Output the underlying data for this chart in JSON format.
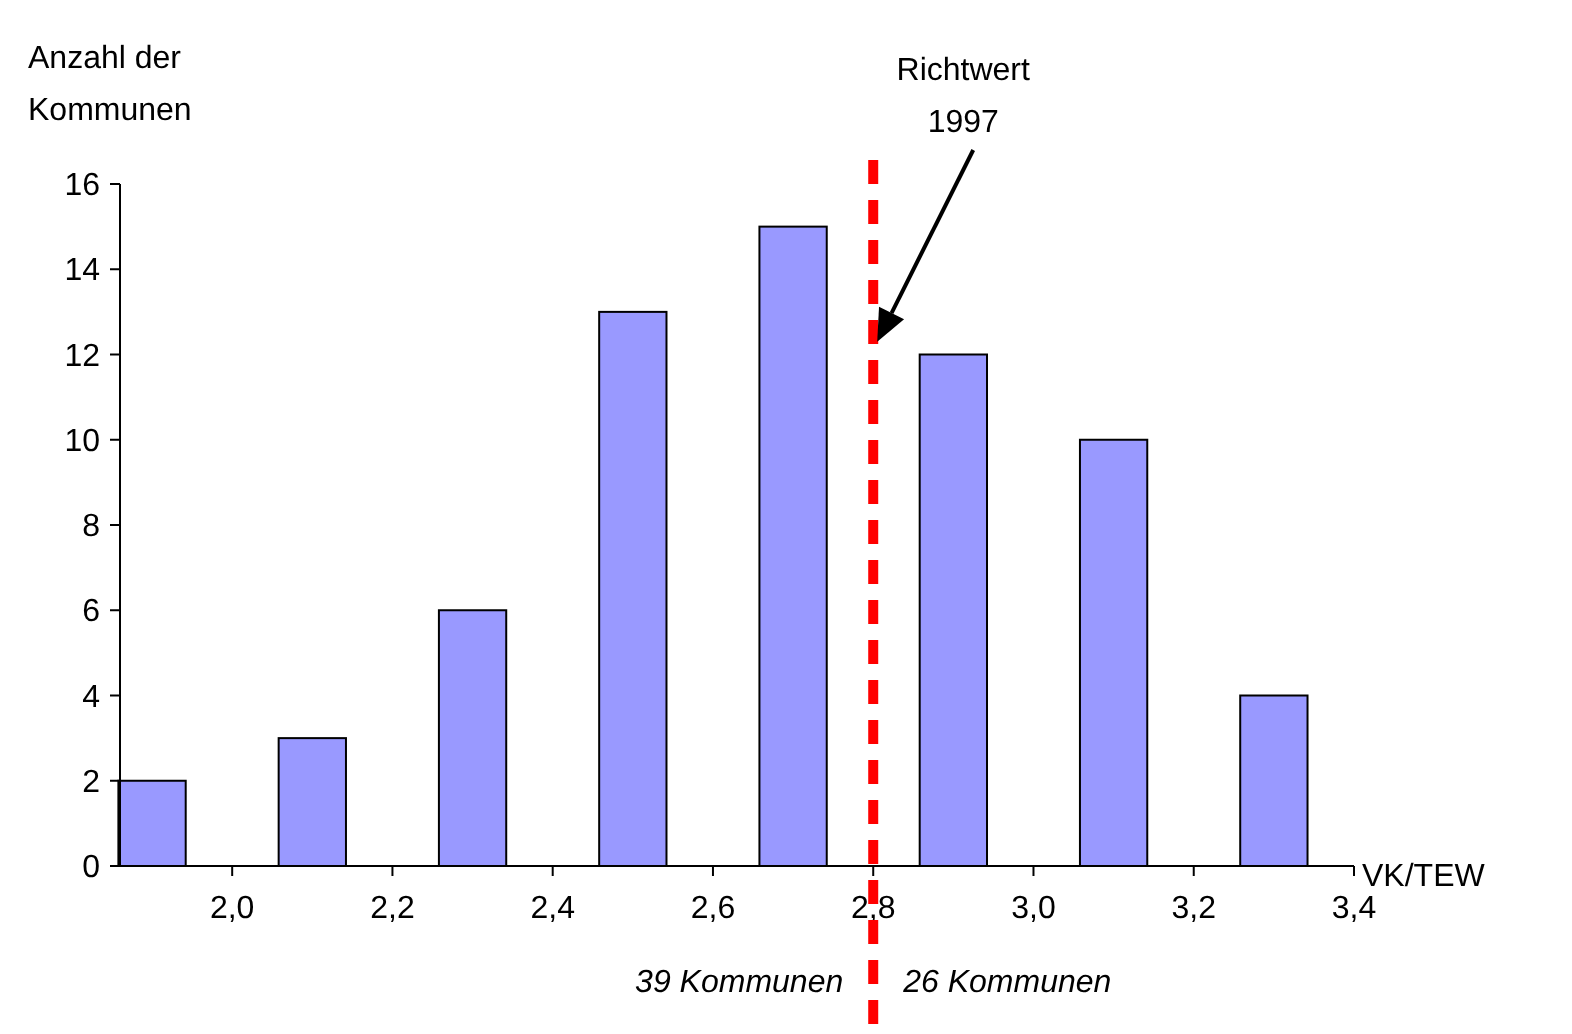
{
  "chart_data": {
    "type": "bar",
    "xlabel": "VK/TEW",
    "ylabel": "Anzahl der Kommunen",
    "x": [
      1.9,
      2.1,
      2.3,
      2.5,
      2.7,
      2.9,
      3.1,
      3.3
    ],
    "values": [
      2,
      3,
      6,
      13,
      15,
      12,
      10,
      4
    ],
    "color": "#9999ff",
    "xlim": [
      1.86,
      3.4
    ],
    "xticks": [
      {
        "value": 2.0,
        "label": "2,0"
      },
      {
        "value": 2.2,
        "label": "2,2"
      },
      {
        "value": 2.4,
        "label": "2,4"
      },
      {
        "value": 2.6,
        "label": "2,6"
      },
      {
        "value": 2.8,
        "label": "2,8"
      },
      {
        "value": 3.0,
        "label": "3,0"
      },
      {
        "value": 3.2,
        "label": "3,2"
      },
      {
        "value": 3.4,
        "label": "3,4"
      }
    ],
    "ylim": [
      0,
      16
    ],
    "yticks": [
      0,
      2,
      4,
      6,
      8,
      10,
      12,
      14,
      16
    ],
    "grid": false,
    "ref_lines": [
      {
        "axis": "x",
        "value": 2.8,
        "label": "Richtwert 1997",
        "color": "#ff0000",
        "line_style": "dashed"
      }
    ],
    "annotations": [
      "39 Kommunen",
      "26 Kommunen"
    ]
  }
}
